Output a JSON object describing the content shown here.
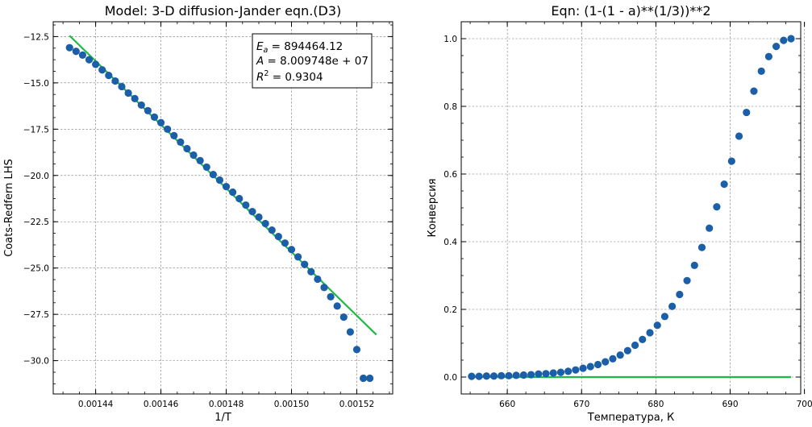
{
  "chart_data": [
    {
      "type": "scatter",
      "title": "Model: 3-D diffusion-Jander eqn.(D3)",
      "xlabel": "1/T",
      "ylabel": "Coats-Redfern LHS",
      "xlim": [
        0.001427,
        0.001531
      ],
      "ylim": [
        -31.8,
        -11.7
      ],
      "xticks": [
        0.00144,
        0.00146,
        0.00148,
        0.0015,
        0.00152
      ],
      "xtick_labels": [
        "0.00144",
        "0.00146",
        "0.00148",
        "0.00150",
        "0.00152"
      ],
      "yticks": [
        -12.5,
        -15.0,
        -17.5,
        -20.0,
        -22.5,
        -25.0,
        -27.5,
        -30.0
      ],
      "ytick_labels": [
        "−12.5",
        "−15.0",
        "−17.5",
        "−20.0",
        "−22.5",
        "−25.0",
        "−27.5",
        "−30.0"
      ],
      "grid": true,
      "series": [
        {
          "kind": "points",
          "color": "#1a5fa8",
          "x": [
            0.001432,
            0.001434,
            0.001436,
            0.001438,
            0.00144,
            0.001442,
            0.001444,
            0.001446,
            0.001448,
            0.00145,
            0.001452,
            0.001454,
            0.001456,
            0.001458,
            0.00146,
            0.001462,
            0.001464,
            0.001466,
            0.001468,
            0.00147,
            0.001472,
            0.001474,
            0.001476,
            0.001478,
            0.00148,
            0.001482,
            0.001484,
            0.001486,
            0.001488,
            0.00149,
            0.001492,
            0.001494,
            0.001496,
            0.001498,
            0.0015,
            0.001502,
            0.001504,
            0.001506,
            0.001508,
            0.00151,
            0.001512,
            0.001514,
            0.001516,
            0.001518,
            0.00152,
            0.001522,
            0.001524
          ],
          "y": [
            -13.1,
            -13.3,
            -13.5,
            -13.75,
            -14.0,
            -14.3,
            -14.6,
            -14.9,
            -15.2,
            -15.55,
            -15.85,
            -16.2,
            -16.5,
            -16.85,
            -17.15,
            -17.5,
            -17.85,
            -18.2,
            -18.55,
            -18.9,
            -19.2,
            -19.55,
            -19.95,
            -20.25,
            -20.6,
            -20.9,
            -21.25,
            -21.6,
            -21.95,
            -22.25,
            -22.6,
            -22.95,
            -23.3,
            -23.65,
            -24.0,
            -24.4,
            -24.8,
            -25.2,
            -25.6,
            -26.05,
            -26.55,
            -27.05,
            -27.65,
            -28.45,
            -29.4,
            -30.95,
            -30.95
          ]
        },
        {
          "kind": "fit-line",
          "color": "#1fba45",
          "x": [
            0.001432,
            0.001526
          ],
          "y": [
            -12.45,
            -28.6
          ]
        }
      ],
      "annotation": [
        {
          "text": "E",
          "sub": "a",
          "value": " = 894464.12"
        },
        {
          "text": "A",
          "sub": "",
          "value": " = 8.009748e + 07"
        },
        {
          "text": "R",
          "sup": "2",
          "value": " = 0.9304"
        }
      ]
    },
    {
      "type": "scatter",
      "title": "Eqn: (1-(1 - a)**(1/3))**2",
      "xlabel": "Температура, К",
      "ylabel": "Конверсия",
      "xlim": [
        653.8,
        699.5
      ],
      "ylim": [
        -0.05,
        1.05
      ],
      "xticks": [
        660,
        670,
        680,
        690,
        700
      ],
      "xtick_labels": [
        "660",
        "670",
        "680",
        "690",
        "700"
      ],
      "yticks": [
        0.0,
        0.2,
        0.4,
        0.6,
        0.8,
        1.0
      ],
      "ytick_labels": [
        "0.0",
        "0.2",
        "0.4",
        "0.6",
        "0.8",
        "1.0"
      ],
      "grid": true,
      "series": [
        {
          "kind": "points",
          "color": "#1a5fa8",
          "x": [
            655.2,
            656.2,
            657.2,
            658.2,
            659.2,
            660.2,
            661.2,
            662.2,
            663.2,
            664.2,
            665.2,
            666.2,
            667.2,
            668.2,
            669.2,
            670.2,
            671.2,
            672.2,
            673.2,
            674.2,
            675.2,
            676.2,
            677.2,
            678.2,
            679.2,
            680.2,
            681.2,
            682.2,
            683.2,
            684.2,
            685.2,
            686.2,
            687.2,
            688.2,
            689.2,
            690.2,
            691.2,
            692.2,
            693.2,
            694.2,
            695.2,
            696.2,
            697.2,
            698.2
          ],
          "y": [
            0.002,
            0.002,
            0.003,
            0.003,
            0.004,
            0.004,
            0.005,
            0.006,
            0.007,
            0.009,
            0.01,
            0.012,
            0.014,
            0.017,
            0.021,
            0.026,
            0.031,
            0.037,
            0.045,
            0.054,
            0.065,
            0.078,
            0.094,
            0.111,
            0.131,
            0.153,
            0.179,
            0.209,
            0.244,
            0.285,
            0.33,
            0.383,
            0.44,
            0.503,
            0.57,
            0.638,
            0.712,
            0.782,
            0.845,
            0.904,
            0.947,
            0.977,
            0.995,
            1.0
          ]
        },
        {
          "kind": "fit-line",
          "color": "#1fba45",
          "x": [
            655.2,
            698.2
          ],
          "y": [
            0.0,
            0.0
          ]
        }
      ]
    }
  ]
}
